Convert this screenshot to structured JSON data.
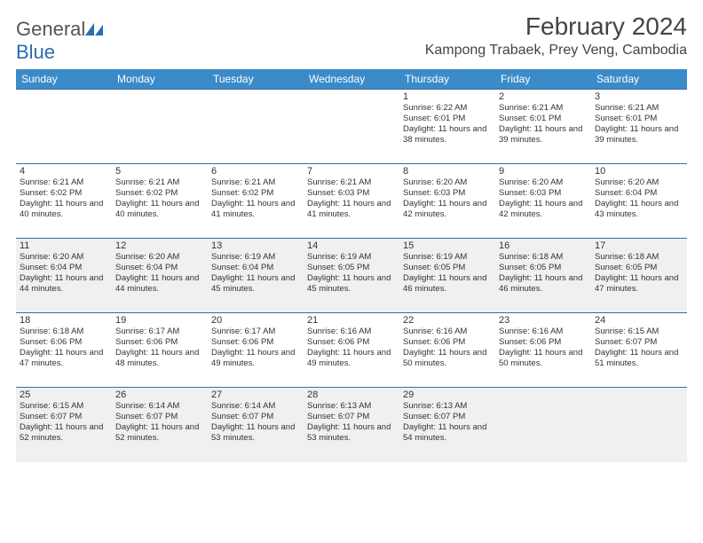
{
  "brand": {
    "part1": "General",
    "part2": "Blue"
  },
  "colors": {
    "header_bg": "#3b8bc9",
    "rule": "#3b6a9a",
    "shade": "#f0f0f0",
    "brand_blue": "#2a6db2"
  },
  "title": "February 2024",
  "location": "Kampong Trabaek, Prey Veng, Cambodia",
  "weekdays": [
    "Sunday",
    "Monday",
    "Tuesday",
    "Wednesday",
    "Thursday",
    "Friday",
    "Saturday"
  ],
  "typography": {
    "title_fontsize": 28,
    "location_fontsize": 16,
    "weekday_fontsize": 12,
    "cell_fontsize": 9.5
  },
  "weeks": [
    [
      null,
      null,
      null,
      null,
      {
        "n": "1",
        "sunrise": "6:22 AM",
        "sunset": "6:01 PM",
        "daylight": "11 hours and 38 minutes."
      },
      {
        "n": "2",
        "sunrise": "6:21 AM",
        "sunset": "6:01 PM",
        "daylight": "11 hours and 39 minutes."
      },
      {
        "n": "3",
        "sunrise": "6:21 AM",
        "sunset": "6:01 PM",
        "daylight": "11 hours and 39 minutes."
      }
    ],
    [
      {
        "n": "4",
        "sunrise": "6:21 AM",
        "sunset": "6:02 PM",
        "daylight": "11 hours and 40 minutes."
      },
      {
        "n": "5",
        "sunrise": "6:21 AM",
        "sunset": "6:02 PM",
        "daylight": "11 hours and 40 minutes."
      },
      {
        "n": "6",
        "sunrise": "6:21 AM",
        "sunset": "6:02 PM",
        "daylight": "11 hours and 41 minutes."
      },
      {
        "n": "7",
        "sunrise": "6:21 AM",
        "sunset": "6:03 PM",
        "daylight": "11 hours and 41 minutes."
      },
      {
        "n": "8",
        "sunrise": "6:20 AM",
        "sunset": "6:03 PM",
        "daylight": "11 hours and 42 minutes."
      },
      {
        "n": "9",
        "sunrise": "6:20 AM",
        "sunset": "6:03 PM",
        "daylight": "11 hours and 42 minutes."
      },
      {
        "n": "10",
        "sunrise": "6:20 AM",
        "sunset": "6:04 PM",
        "daylight": "11 hours and 43 minutes."
      }
    ],
    [
      {
        "n": "11",
        "sunrise": "6:20 AM",
        "sunset": "6:04 PM",
        "daylight": "11 hours and 44 minutes."
      },
      {
        "n": "12",
        "sunrise": "6:20 AM",
        "sunset": "6:04 PM",
        "daylight": "11 hours and 44 minutes."
      },
      {
        "n": "13",
        "sunrise": "6:19 AM",
        "sunset": "6:04 PM",
        "daylight": "11 hours and 45 minutes."
      },
      {
        "n": "14",
        "sunrise": "6:19 AM",
        "sunset": "6:05 PM",
        "daylight": "11 hours and 45 minutes."
      },
      {
        "n": "15",
        "sunrise": "6:19 AM",
        "sunset": "6:05 PM",
        "daylight": "11 hours and 46 minutes."
      },
      {
        "n": "16",
        "sunrise": "6:18 AM",
        "sunset": "6:05 PM",
        "daylight": "11 hours and 46 minutes."
      },
      {
        "n": "17",
        "sunrise": "6:18 AM",
        "sunset": "6:05 PM",
        "daylight": "11 hours and 47 minutes."
      }
    ],
    [
      {
        "n": "18",
        "sunrise": "6:18 AM",
        "sunset": "6:06 PM",
        "daylight": "11 hours and 47 minutes."
      },
      {
        "n": "19",
        "sunrise": "6:17 AM",
        "sunset": "6:06 PM",
        "daylight": "11 hours and 48 minutes."
      },
      {
        "n": "20",
        "sunrise": "6:17 AM",
        "sunset": "6:06 PM",
        "daylight": "11 hours and 49 minutes."
      },
      {
        "n": "21",
        "sunrise": "6:16 AM",
        "sunset": "6:06 PM",
        "daylight": "11 hours and 49 minutes."
      },
      {
        "n": "22",
        "sunrise": "6:16 AM",
        "sunset": "6:06 PM",
        "daylight": "11 hours and 50 minutes."
      },
      {
        "n": "23",
        "sunrise": "6:16 AM",
        "sunset": "6:06 PM",
        "daylight": "11 hours and 50 minutes."
      },
      {
        "n": "24",
        "sunrise": "6:15 AM",
        "sunset": "6:07 PM",
        "daylight": "11 hours and 51 minutes."
      }
    ],
    [
      {
        "n": "25",
        "sunrise": "6:15 AM",
        "sunset": "6:07 PM",
        "daylight": "11 hours and 52 minutes."
      },
      {
        "n": "26",
        "sunrise": "6:14 AM",
        "sunset": "6:07 PM",
        "daylight": "11 hours and 52 minutes."
      },
      {
        "n": "27",
        "sunrise": "6:14 AM",
        "sunset": "6:07 PM",
        "daylight": "11 hours and 53 minutes."
      },
      {
        "n": "28",
        "sunrise": "6:13 AM",
        "sunset": "6:07 PM",
        "daylight": "11 hours and 53 minutes."
      },
      {
        "n": "29",
        "sunrise": "6:13 AM",
        "sunset": "6:07 PM",
        "daylight": "11 hours and 54 minutes."
      },
      null,
      null
    ]
  ],
  "labels": {
    "sunrise": "Sunrise:",
    "sunset": "Sunset:",
    "daylight": "Daylight:"
  }
}
